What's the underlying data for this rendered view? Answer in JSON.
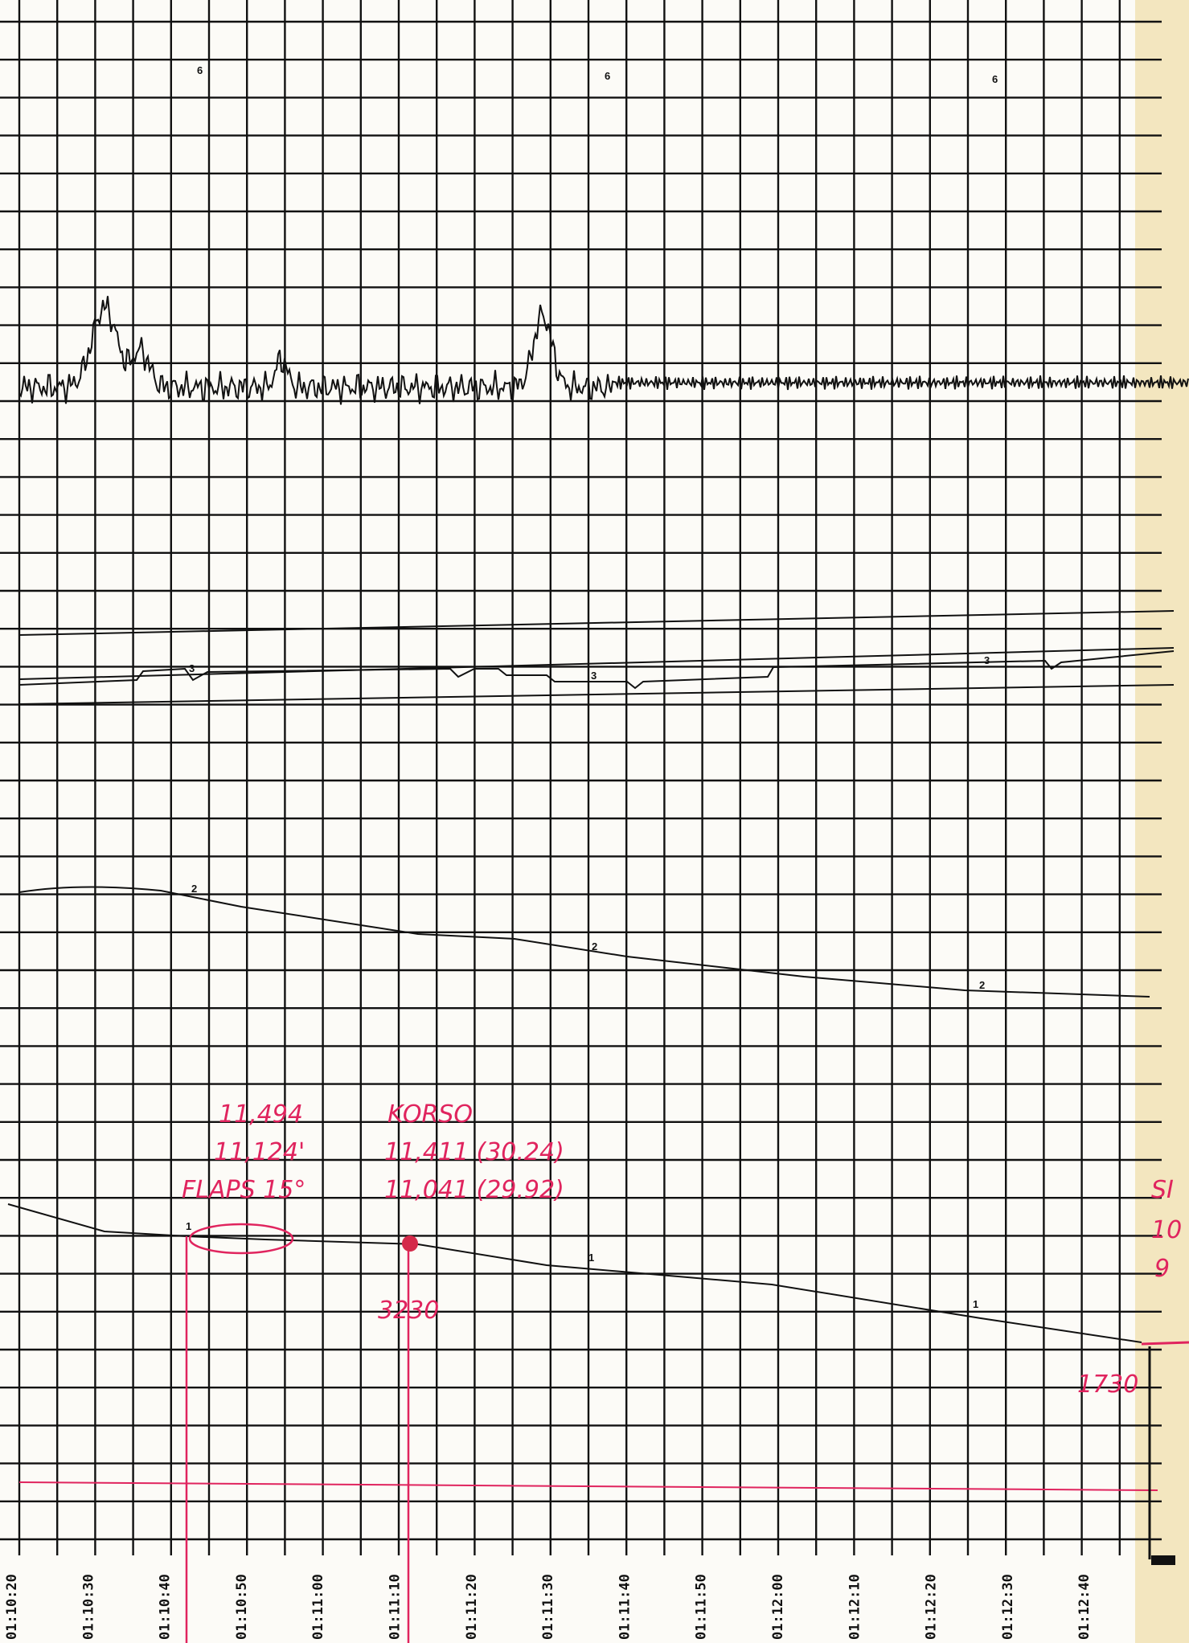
{
  "trace_labels": {
    "trace_6": [
      "6",
      "6",
      "6"
    ],
    "trace_3": [
      "3",
      "3",
      "3"
    ],
    "trace_2": [
      "2",
      "2",
      "2"
    ],
    "trace_1": [
      "1",
      "1",
      "1"
    ]
  },
  "annotations": {
    "flaps_block": [
      "11,494",
      "11,124'",
      "FLAPS 15°"
    ],
    "korso_block": [
      "KORSO",
      "11,411 (30.24)",
      "11,041 (29.92)"
    ],
    "marker_left": "3230",
    "marker_right": "1730",
    "edge_cut": [
      "SI",
      "10",
      "9"
    ]
  },
  "time_labels": [
    "01:10:20",
    "01:10:30",
    "01:10:40",
    "01:10:50",
    "01:11:00",
    "01:11:10",
    "01:11:20",
    "01:11:30",
    "01:11:40",
    "01:11:50",
    "01:12:00",
    "01:12:10",
    "01:12:20",
    "01:12:30",
    "01:12:40"
  ]
}
